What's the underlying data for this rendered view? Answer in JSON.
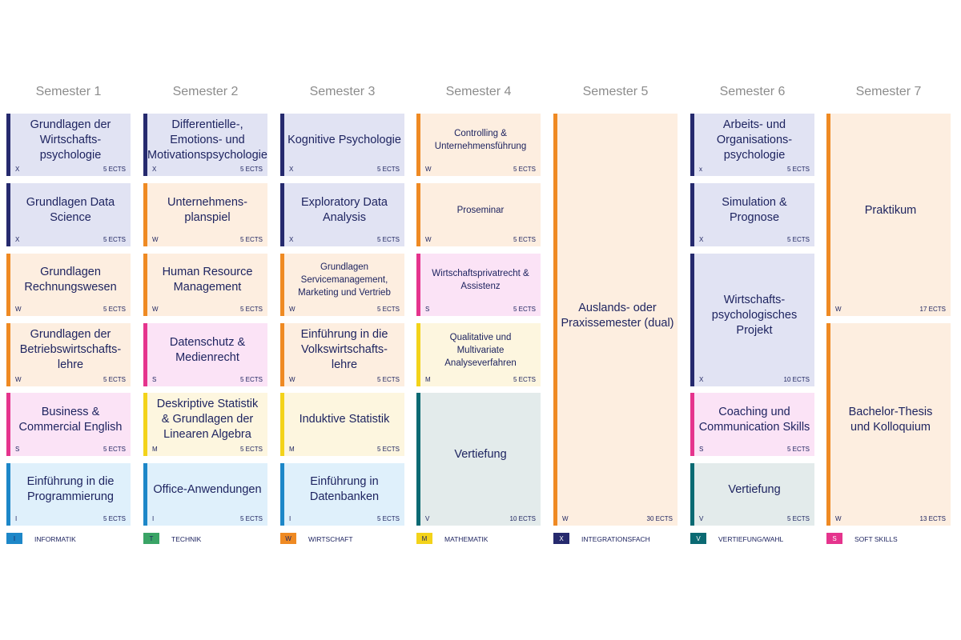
{
  "semesters": [
    "Semester 1",
    "Semester 2",
    "Semester 3",
    "Semester 4",
    "Semester 5",
    "Semester 6",
    "Semester 7"
  ],
  "modules": [
    {
      "id": "s1-1",
      "title": "Grundlagen der\nWirtschafts-\npsychologie",
      "code": "X",
      "ects": "5 ECTS",
      "cat": "X"
    },
    {
      "id": "s1-2",
      "title": "Grundlagen Data\nScience",
      "code": "X",
      "ects": "5 ECTS",
      "cat": "X"
    },
    {
      "id": "s1-3",
      "title": "Grundlagen\nRechnungswesen",
      "code": "W",
      "ects": "5 ECTS",
      "cat": "W"
    },
    {
      "id": "s1-4",
      "title": "Grundlagen der\nBetriebswirtschafts-\nlehre",
      "code": "W",
      "ects": "5 ECTS",
      "cat": "W"
    },
    {
      "id": "s1-5",
      "title": "Business &\nCommercial English",
      "code": "S",
      "ects": "5 ECTS",
      "cat": "S"
    },
    {
      "id": "s1-6",
      "title": "Einführung in die\nProgrammierung",
      "code": "I",
      "ects": "5 ECTS",
      "cat": "I"
    },
    {
      "id": "s2-1",
      "title": "Differentielle-,\nEmotions- und\nMotivationspsychologie",
      "code": "X",
      "ects": "5 ECTS",
      "cat": "X"
    },
    {
      "id": "s2-2",
      "title": "Unternehmens-\nplanspiel",
      "code": "W",
      "ects": "5 ECTS",
      "cat": "W"
    },
    {
      "id": "s2-3",
      "title": "Human Resource\nManagement",
      "code": "W",
      "ects": "5 ECTS",
      "cat": "W"
    },
    {
      "id": "s2-4",
      "title": "Datenschutz &\nMedienrecht",
      "code": "S",
      "ects": "5 ECTS",
      "cat": "S"
    },
    {
      "id": "s2-5",
      "title": "Deskriptive Statistik\n& Grundlagen der\nLinearen Algebra",
      "code": "M",
      "ects": "5 ECTS",
      "cat": "M"
    },
    {
      "id": "s2-6",
      "title": "Office-Anwendungen",
      "code": "I",
      "ects": "5 ECTS",
      "cat": "I"
    },
    {
      "id": "s3-1",
      "title": "Kognitive Psychologie",
      "code": "X",
      "ects": "5 ECTS",
      "cat": "X"
    },
    {
      "id": "s3-2",
      "title": "Exploratory Data\nAnalysis",
      "code": "X",
      "ects": "5 ECTS",
      "cat": "X"
    },
    {
      "id": "s3-3",
      "title": "Grundlagen\nServicemanagement,\nMarketing und Vertrieb",
      "code": "W",
      "ects": "5 ECTS",
      "cat": "W",
      "small": true
    },
    {
      "id": "s3-4",
      "title": "Einführung in die\nVolkswirtschafts-\nlehre",
      "code": "W",
      "ects": "5 ECTS",
      "cat": "W"
    },
    {
      "id": "s3-5",
      "title": "Induktive Statistik",
      "code": "M",
      "ects": "5 ECTS",
      "cat": "M"
    },
    {
      "id": "s3-6",
      "title": "Einführung in\nDatenbanken",
      "code": "I",
      "ects": "5 ECTS",
      "cat": "I"
    },
    {
      "id": "s4-1",
      "title": "Controlling &\nUnternehmensführung",
      "code": "W",
      "ects": "5 ECTS",
      "cat": "W",
      "small": true
    },
    {
      "id": "s4-2",
      "title": "Proseminar",
      "code": "W",
      "ects": "5 ECTS",
      "cat": "W",
      "small": true
    },
    {
      "id": "s4-3",
      "title": "Wirtschaftsprivatrecht &\nAssistenz",
      "code": "S",
      "ects": "5 ECTS",
      "cat": "S",
      "small": true
    },
    {
      "id": "s4-4",
      "title": "Qualitative und\nMultivariate\nAnalyseverfahren",
      "code": "M",
      "ects": "5 ECTS",
      "cat": "M",
      "small": true
    },
    {
      "id": "s4-5",
      "title": "Vertiefung",
      "code": "V",
      "ects": "10 ECTS",
      "cat": "V"
    },
    {
      "id": "s5-1",
      "title": "Auslands- oder\nPraxissemester (dual)",
      "code": "W",
      "ects": "30 ECTS",
      "cat": "W"
    },
    {
      "id": "s6-1",
      "title": "Arbeits- und\nOrganisations-\npsychologie",
      "code": "x",
      "ects": "5 ECTS",
      "cat": "X"
    },
    {
      "id": "s6-2",
      "title": "Simulation & Prognose",
      "code": "X",
      "ects": "5 ECTS",
      "cat": "X"
    },
    {
      "id": "s6-3",
      "title": "Wirtschafts-\npsychologisches\nProjekt",
      "code": "X",
      "ects": "10 ECTS",
      "cat": "X"
    },
    {
      "id": "s6-4",
      "title": "Coaching und\nCommunication Skills",
      "code": "S",
      "ects": "5 ECTS",
      "cat": "S"
    },
    {
      "id": "s6-5",
      "title": "Vertiefung",
      "code": "V",
      "ects": "5 ECTS",
      "cat": "V"
    },
    {
      "id": "s7-1",
      "title": "Praktikum",
      "code": "W",
      "ects": "17 ECTS",
      "cat": "W"
    },
    {
      "id": "s7-2",
      "title": "Bachelor-Thesis\nund Kolloquium",
      "code": "W",
      "ects": "13 ECTS",
      "cat": "W"
    }
  ],
  "legend": [
    {
      "key": "I",
      "label": "INFORMATIK",
      "color": "#1d87c8"
    },
    {
      "key": "T",
      "label": "TECHNIK",
      "color": "#3aa466"
    },
    {
      "key": "W",
      "label": "WIRTSCHAFT",
      "color": "#ef8a23"
    },
    {
      "key": "M",
      "label": "MATHEMATIK",
      "color": "#f3d31a"
    },
    {
      "key": "X",
      "label": "INTEGRATIONSFACH",
      "color": "#262a6e"
    },
    {
      "key": "V",
      "label": "VERTIEFUNG/WAHL",
      "color": "#0b6a73"
    },
    {
      "key": "S",
      "label": "SOFT SKILLS",
      "color": "#e5348d"
    }
  ]
}
